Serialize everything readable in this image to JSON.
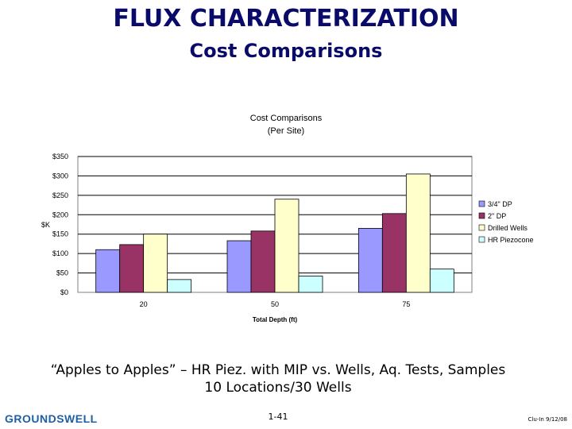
{
  "slide": {
    "title": "FLUX CHARACTERIZATION",
    "subtitle": "Cost Comparisons",
    "caption_line1": "“Apples to Apples” – HR Piez. with MIP vs. Wells, Aq. Tests, Samples",
    "caption_line2": "10 Locations/30 Wells",
    "logo_text": "GROUNDSWELL",
    "page_number": "1-41",
    "footer_right": "Clu-In 9/12/08"
  },
  "chart_data": {
    "type": "bar",
    "title": "Cost Comparisons",
    "subtitle": "(Per Site)",
    "xlabel": "Total Depth (ft)",
    "ylabel": "$K",
    "categories": [
      "20",
      "50",
      "75"
    ],
    "ylim": [
      0,
      350
    ],
    "yticks": [
      "$0",
      "$50",
      "$100",
      "$150",
      "$200",
      "$250",
      "$300",
      "$350"
    ],
    "ytick_values": [
      0,
      50,
      100,
      150,
      200,
      250,
      300,
      350
    ],
    "grid": true,
    "legend_position": "right",
    "series": [
      {
        "name": "3/4\" DP",
        "color": "#9999ff",
        "values": [
          110,
          133,
          165
        ]
      },
      {
        "name": "2\" DP",
        "color": "#993366",
        "values": [
          123,
          158,
          203
        ]
      },
      {
        "name": "Drilled Wells",
        "color": "#ffffcc",
        "values": [
          150,
          240,
          305
        ]
      },
      {
        "name": "HR Piezocone",
        "color": "#ccffff",
        "values": [
          33,
          42,
          60
        ]
      }
    ]
  }
}
